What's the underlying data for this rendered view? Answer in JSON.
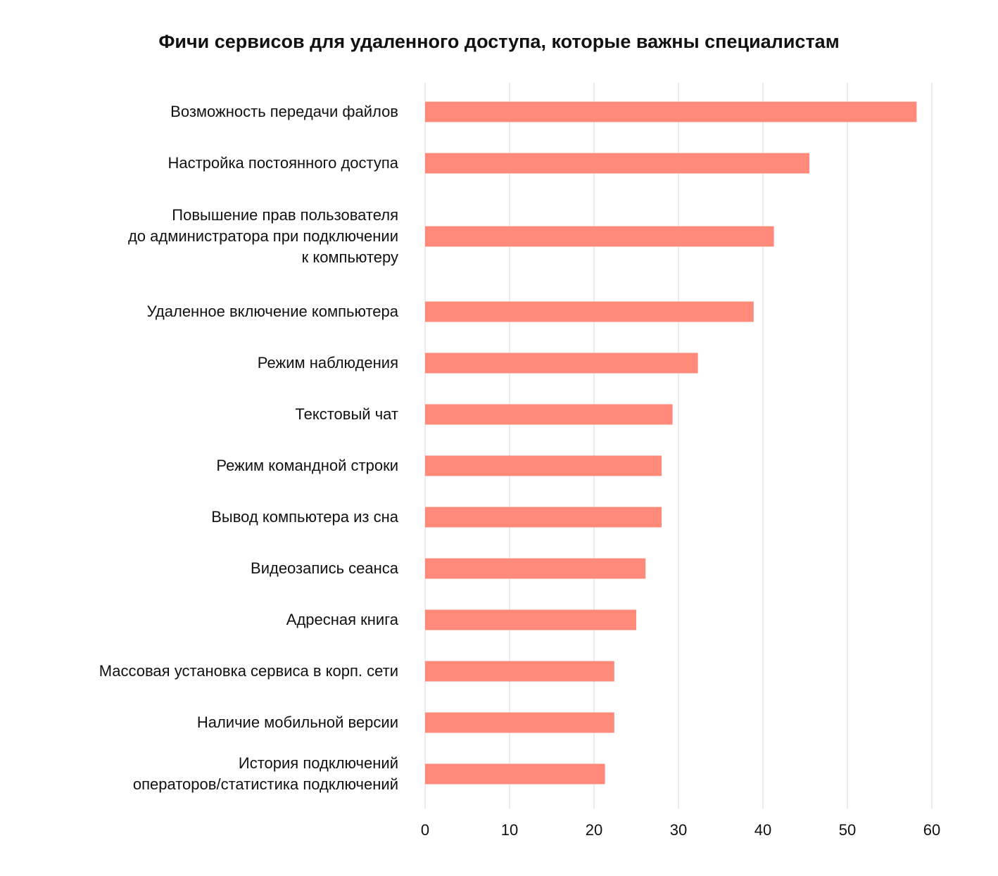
{
  "chart_data": {
    "type": "bar",
    "orientation": "horizontal",
    "title": "Фичи сервисов для удаленного доступа, которые важны специалистам",
    "xlabel": "",
    "ylabel": "",
    "xlim": [
      0,
      60
    ],
    "x_ticks": [
      0,
      10,
      20,
      30,
      40,
      50,
      60
    ],
    "grid": true,
    "bar_color": "#FF8A7A",
    "grid_color": "#D9D9D9",
    "categories": [
      [
        "Возможность передачи файлов"
      ],
      [
        "Настройка постоянного доступа"
      ],
      [
        "Повышение прав пользователя",
        "до администратора при подключении",
        "к компьютеру"
      ],
      [
        "Удаленное включение компьютера"
      ],
      [
        "Режим наблюдения"
      ],
      [
        "Текстовый чат"
      ],
      [
        "Режим командной строки"
      ],
      [
        "Вывод компьютера из сна"
      ],
      [
        "Видеозапись сеанса"
      ],
      [
        "Адресная книга"
      ],
      [
        "Массовая установка сервиса в корп. сети"
      ],
      [
        "Наличие мобильной версии"
      ],
      [
        "История подключений",
        "операторов/статистика подключений"
      ]
    ],
    "values": [
      58.2,
      45.5,
      41.3,
      38.9,
      32.3,
      29.3,
      28.0,
      28.0,
      26.1,
      25.0,
      22.4,
      22.4,
      21.3
    ]
  }
}
